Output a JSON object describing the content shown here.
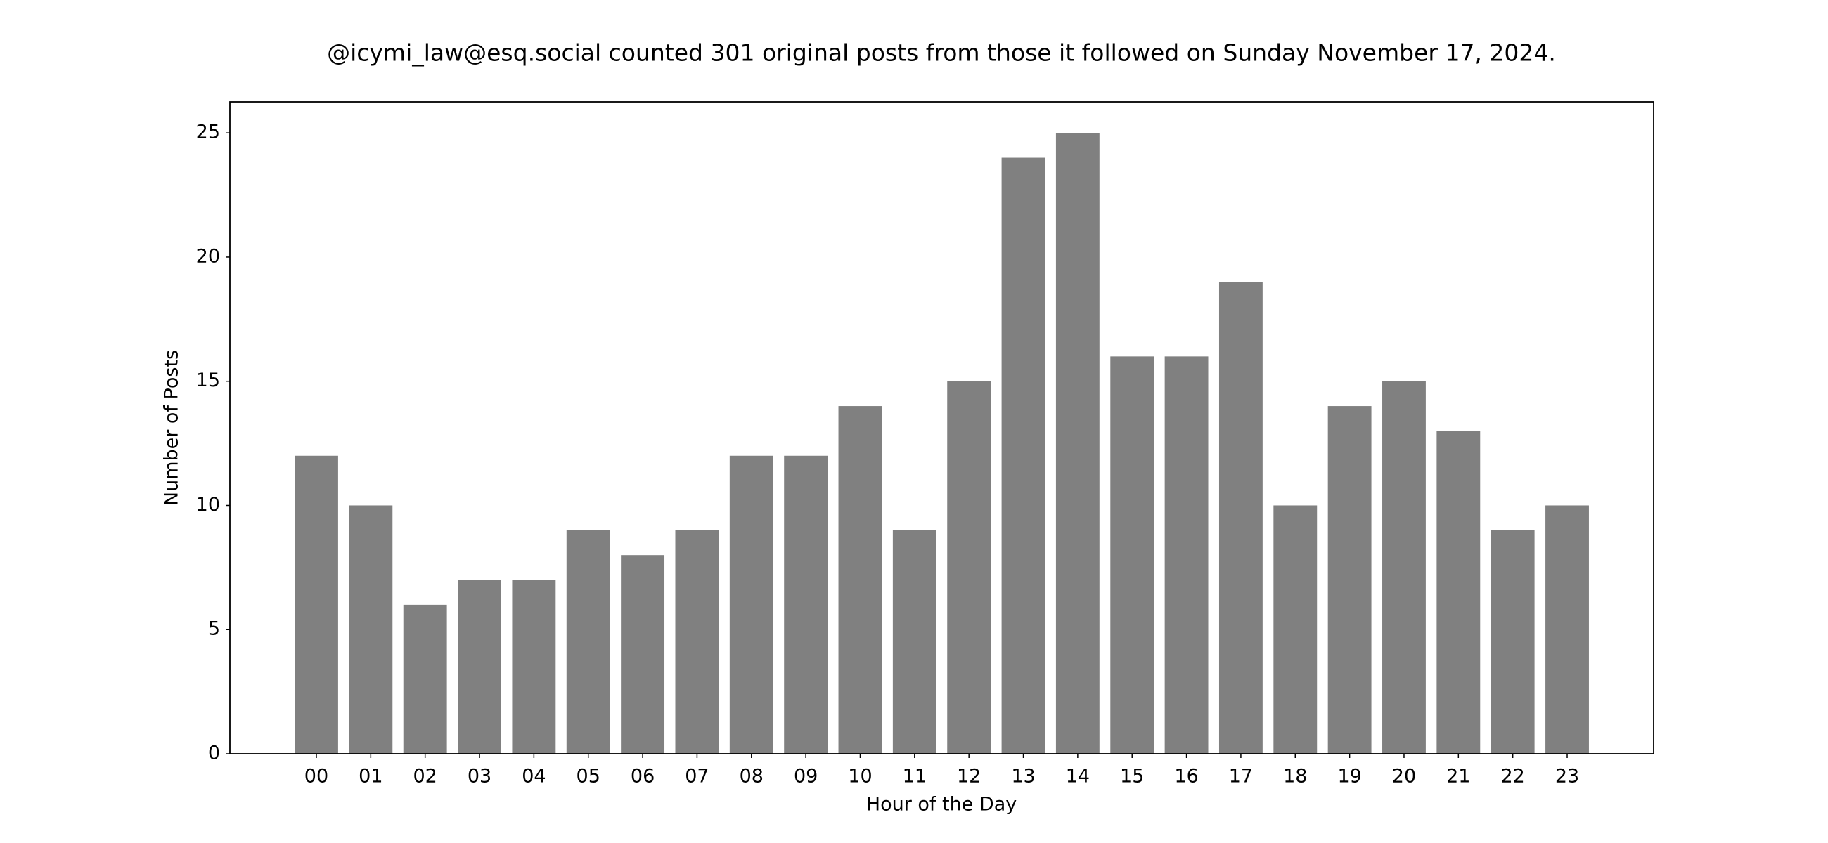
{
  "chart_data": {
    "type": "bar",
    "title": "@icymi_law@esq.social counted 301 original posts from those it followed on Sunday November 17, 2024.",
    "x_label": "Hour of the Day",
    "y_label": "Number of Posts",
    "categories": [
      "00",
      "01",
      "02",
      "03",
      "04",
      "05",
      "06",
      "07",
      "08",
      "09",
      "10",
      "11",
      "12",
      "13",
      "14",
      "15",
      "16",
      "17",
      "18",
      "19",
      "20",
      "21",
      "22",
      "23"
    ],
    "values": [
      12,
      10,
      6,
      7,
      7,
      9,
      8,
      9,
      12,
      12,
      14,
      9,
      15,
      24,
      25,
      16,
      16,
      19,
      10,
      14,
      15,
      13,
      9,
      10
    ],
    "color": "#808080",
    "ylim": [
      0,
      26.25
    ],
    "yticks": [
      0,
      5,
      10,
      15,
      20,
      25
    ],
    "grid": false
  }
}
